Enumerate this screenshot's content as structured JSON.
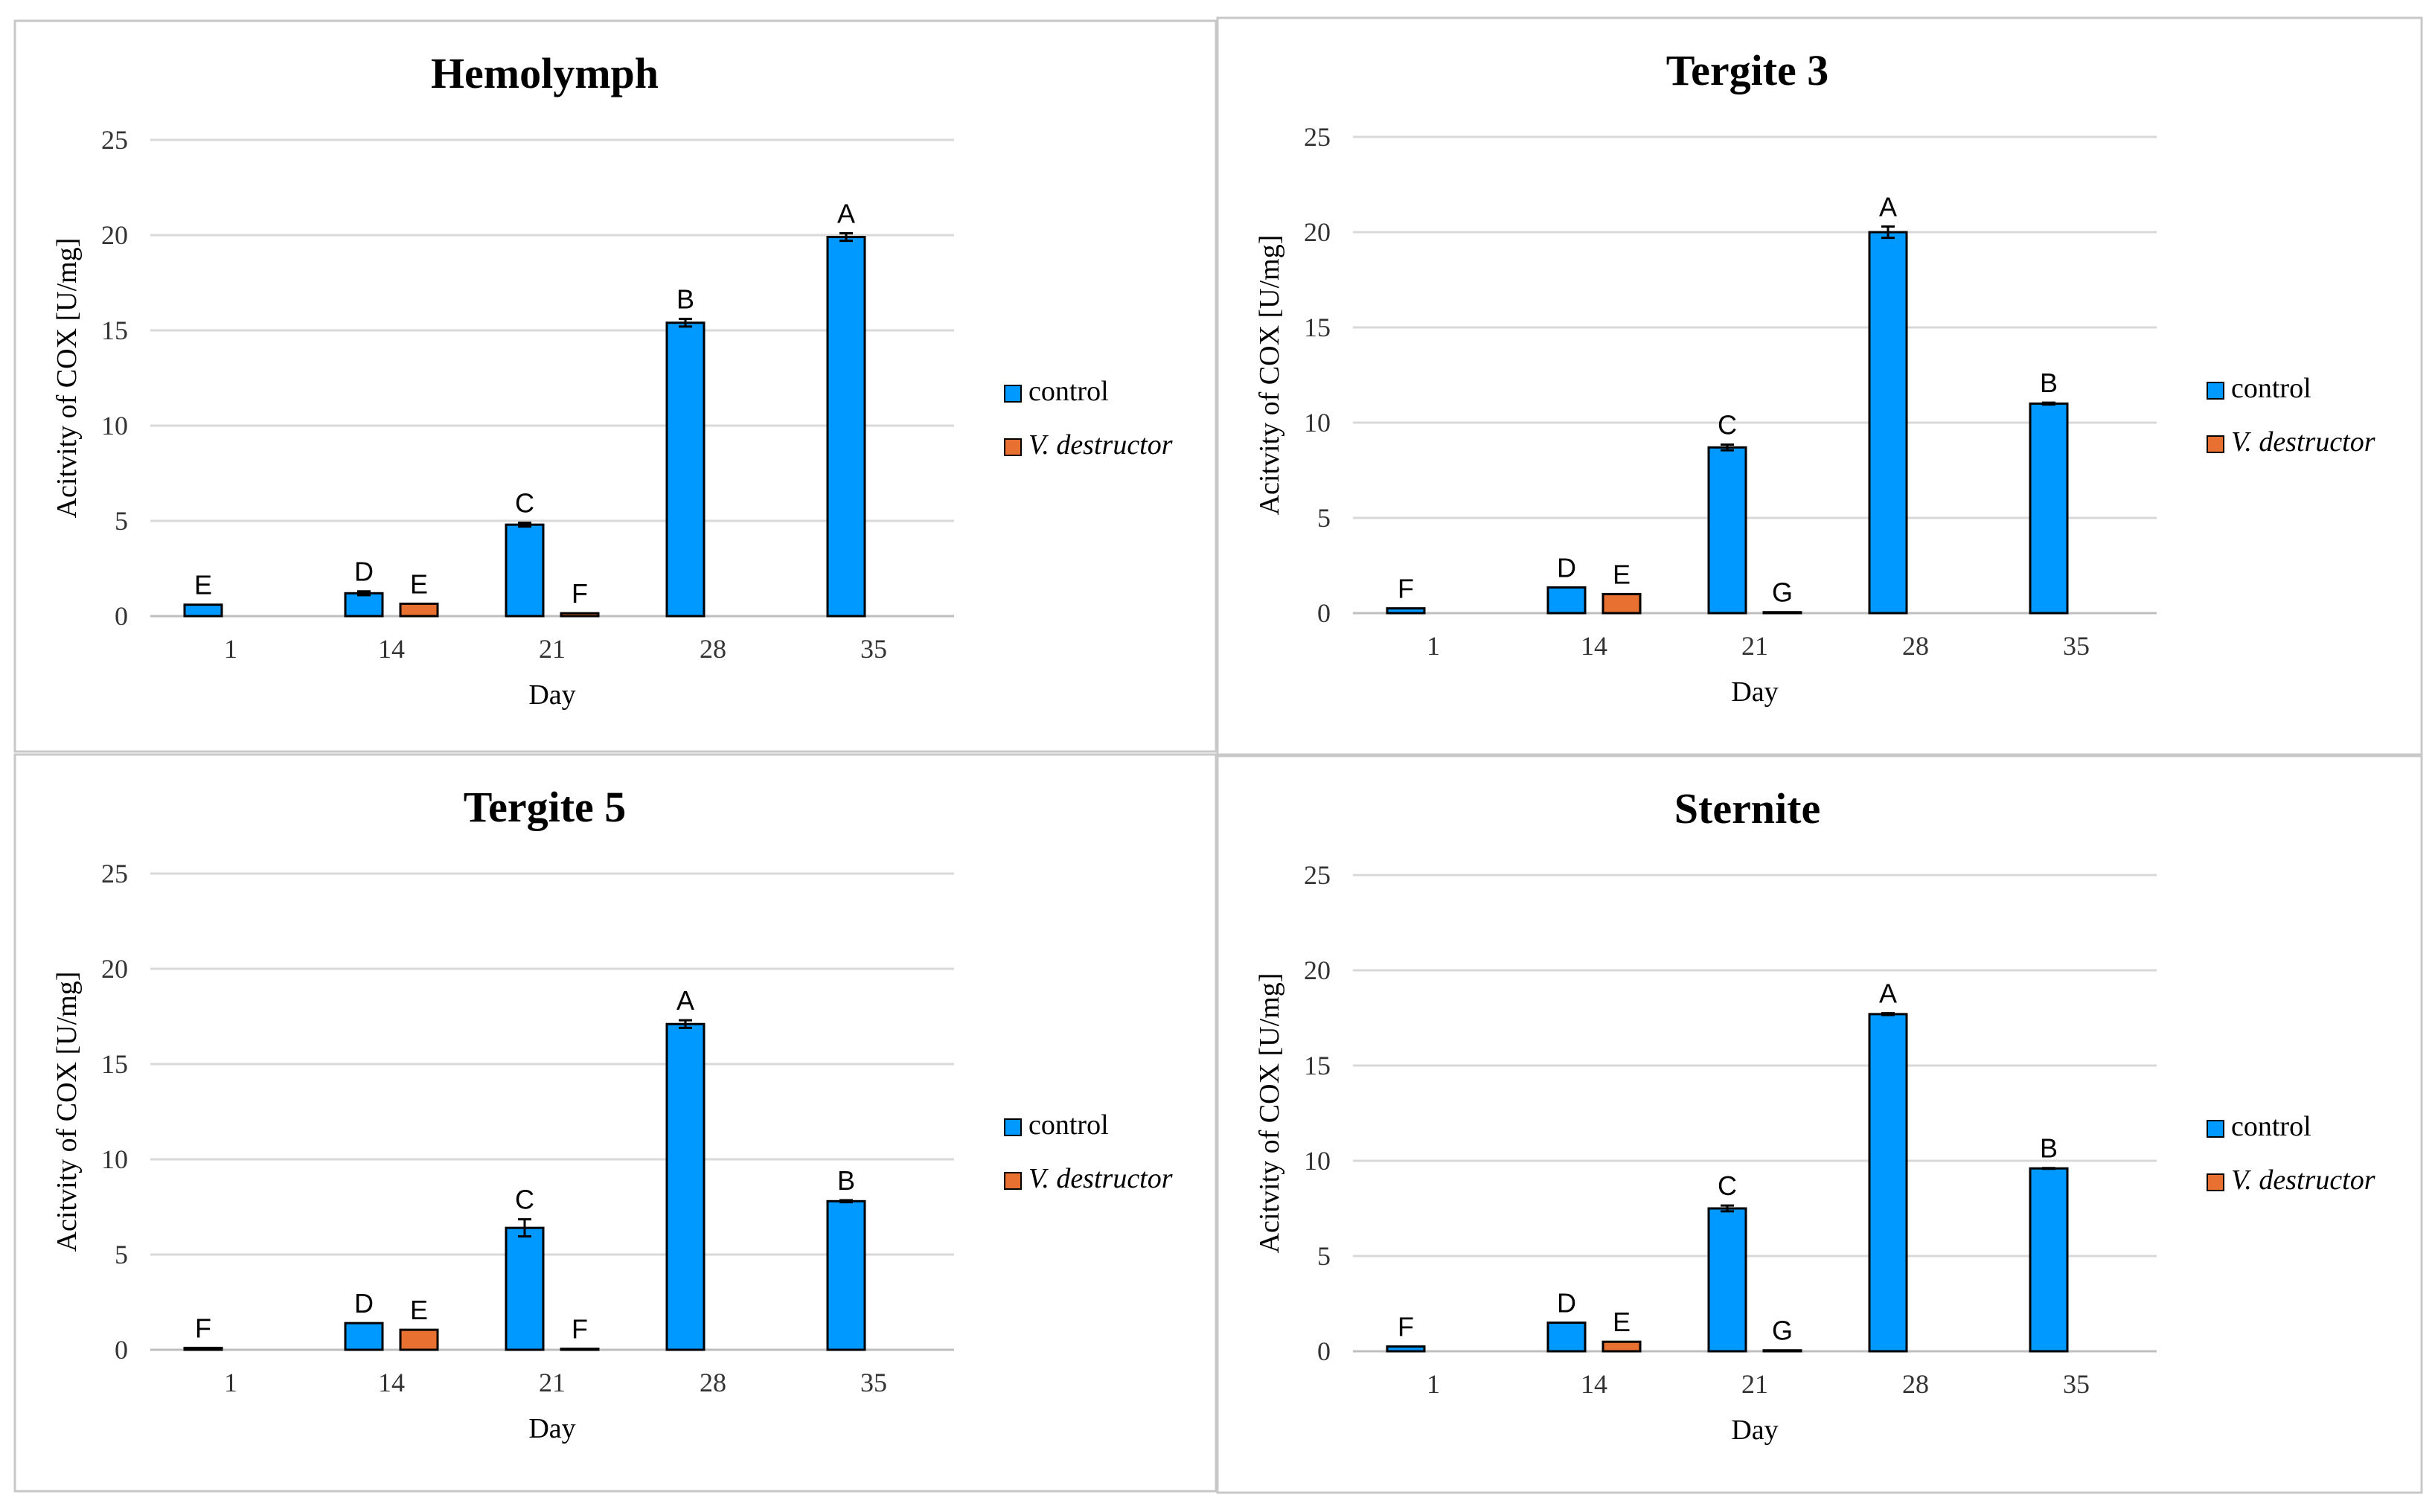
{
  "colors": {
    "control": "#0099ff",
    "v_destructor": "#e87132",
    "grid": "#d9d9d9",
    "panel_border": "#c8c8c8",
    "axis": "#bfbfbf"
  },
  "chart_data": [
    {
      "type": "bar",
      "title": "Hemolymph",
      "xlabel": "Day",
      "ylabel": "Acitvity of COX [U/mg]",
      "categories": [
        "1",
        "14",
        "21",
        "28",
        "35"
      ],
      "ylim": [
        0,
        25
      ],
      "yticks": [
        "0",
        "5",
        "10",
        "15",
        "20",
        "25"
      ],
      "legend": {
        "position": "right",
        "entries": [
          "control",
          "V. destructor"
        ]
      },
      "series": [
        {
          "name": "control",
          "values": [
            0.6,
            1.2,
            4.8,
            15.4,
            19.9
          ],
          "errors": [
            0,
            0.1,
            0.1,
            0.2,
            0.2
          ],
          "letters": [
            "E",
            "D",
            "C",
            "B",
            "A"
          ]
        },
        {
          "name": "V. destructor",
          "values": [
            0,
            0.65,
            0.15,
            null,
            null
          ],
          "errors": [
            0,
            0,
            0,
            0,
            0
          ],
          "letters": [
            "",
            "E",
            "F",
            "",
            ""
          ]
        }
      ]
    },
    {
      "type": "bar",
      "title": "Tergite 3",
      "xlabel": "Day",
      "ylabel": "Acitvity of COX [U/mg]",
      "categories": [
        "1",
        "14",
        "21",
        "28",
        "35"
      ],
      "ylim": [
        0,
        25
      ],
      "yticks": [
        "0",
        "5",
        "10",
        "15",
        "20",
        "25"
      ],
      "legend": {
        "position": "right",
        "entries": [
          "control",
          "V. destructor"
        ]
      },
      "series": [
        {
          "name": "control",
          "values": [
            0.25,
            1.35,
            8.7,
            20.0,
            11.0
          ],
          "errors": [
            0,
            0,
            0.15,
            0.3,
            0.05
          ],
          "letters": [
            "F",
            "D",
            "C",
            "A",
            "B"
          ]
        },
        {
          "name": "V. destructor",
          "values": [
            0,
            1.0,
            0.05,
            null,
            null
          ],
          "errors": [
            0,
            0,
            0,
            0,
            0
          ],
          "letters": [
            "",
            "E",
            "G",
            "",
            ""
          ]
        }
      ]
    },
    {
      "type": "bar",
      "title": "Tergite 5",
      "xlabel": "Day",
      "ylabel": "Acitvity of COX [U/mg]",
      "categories": [
        "1",
        "14",
        "21",
        "28",
        "35"
      ],
      "ylim": [
        0,
        25
      ],
      "yticks": [
        "0",
        "5",
        "10",
        "15",
        "20",
        "25"
      ],
      "legend": {
        "position": "right",
        "entries": [
          "control",
          "V. destructor"
        ]
      },
      "series": [
        {
          "name": "control",
          "values": [
            0.1,
            1.4,
            6.4,
            17.1,
            7.8
          ],
          "errors": [
            0,
            0,
            0.45,
            0.2,
            0.05
          ],
          "letters": [
            "F",
            "D",
            "C",
            "A",
            "B"
          ]
        },
        {
          "name": "V. destructor",
          "values": [
            0,
            1.05,
            0.05,
            null,
            null
          ],
          "errors": [
            0,
            0,
            0,
            0,
            0
          ],
          "letters": [
            "",
            "E",
            "F",
            "",
            ""
          ]
        }
      ]
    },
    {
      "type": "bar",
      "title": "Sternite",
      "xlabel": "Day",
      "ylabel": "Acitvity of COX [U/mg]",
      "categories": [
        "1",
        "14",
        "21",
        "28",
        "35"
      ],
      "ylim": [
        0,
        25
      ],
      "yticks": [
        "0",
        "5",
        "10",
        "15",
        "20",
        "25"
      ],
      "legend": {
        "position": "right",
        "entries": [
          "control",
          "V. destructor"
        ]
      },
      "series": [
        {
          "name": "control",
          "values": [
            0.25,
            1.5,
            7.5,
            17.7,
            9.6
          ],
          "errors": [
            0,
            0,
            0.15,
            0.05,
            0.02
          ],
          "letters": [
            "F",
            "D",
            "C",
            "A",
            "B"
          ]
        },
        {
          "name": "V. destructor",
          "values": [
            0,
            0.5,
            0.05,
            null,
            null
          ],
          "errors": [
            0,
            0,
            0,
            0,
            0
          ],
          "letters": [
            "",
            "E",
            "G",
            "",
            ""
          ]
        }
      ]
    }
  ]
}
